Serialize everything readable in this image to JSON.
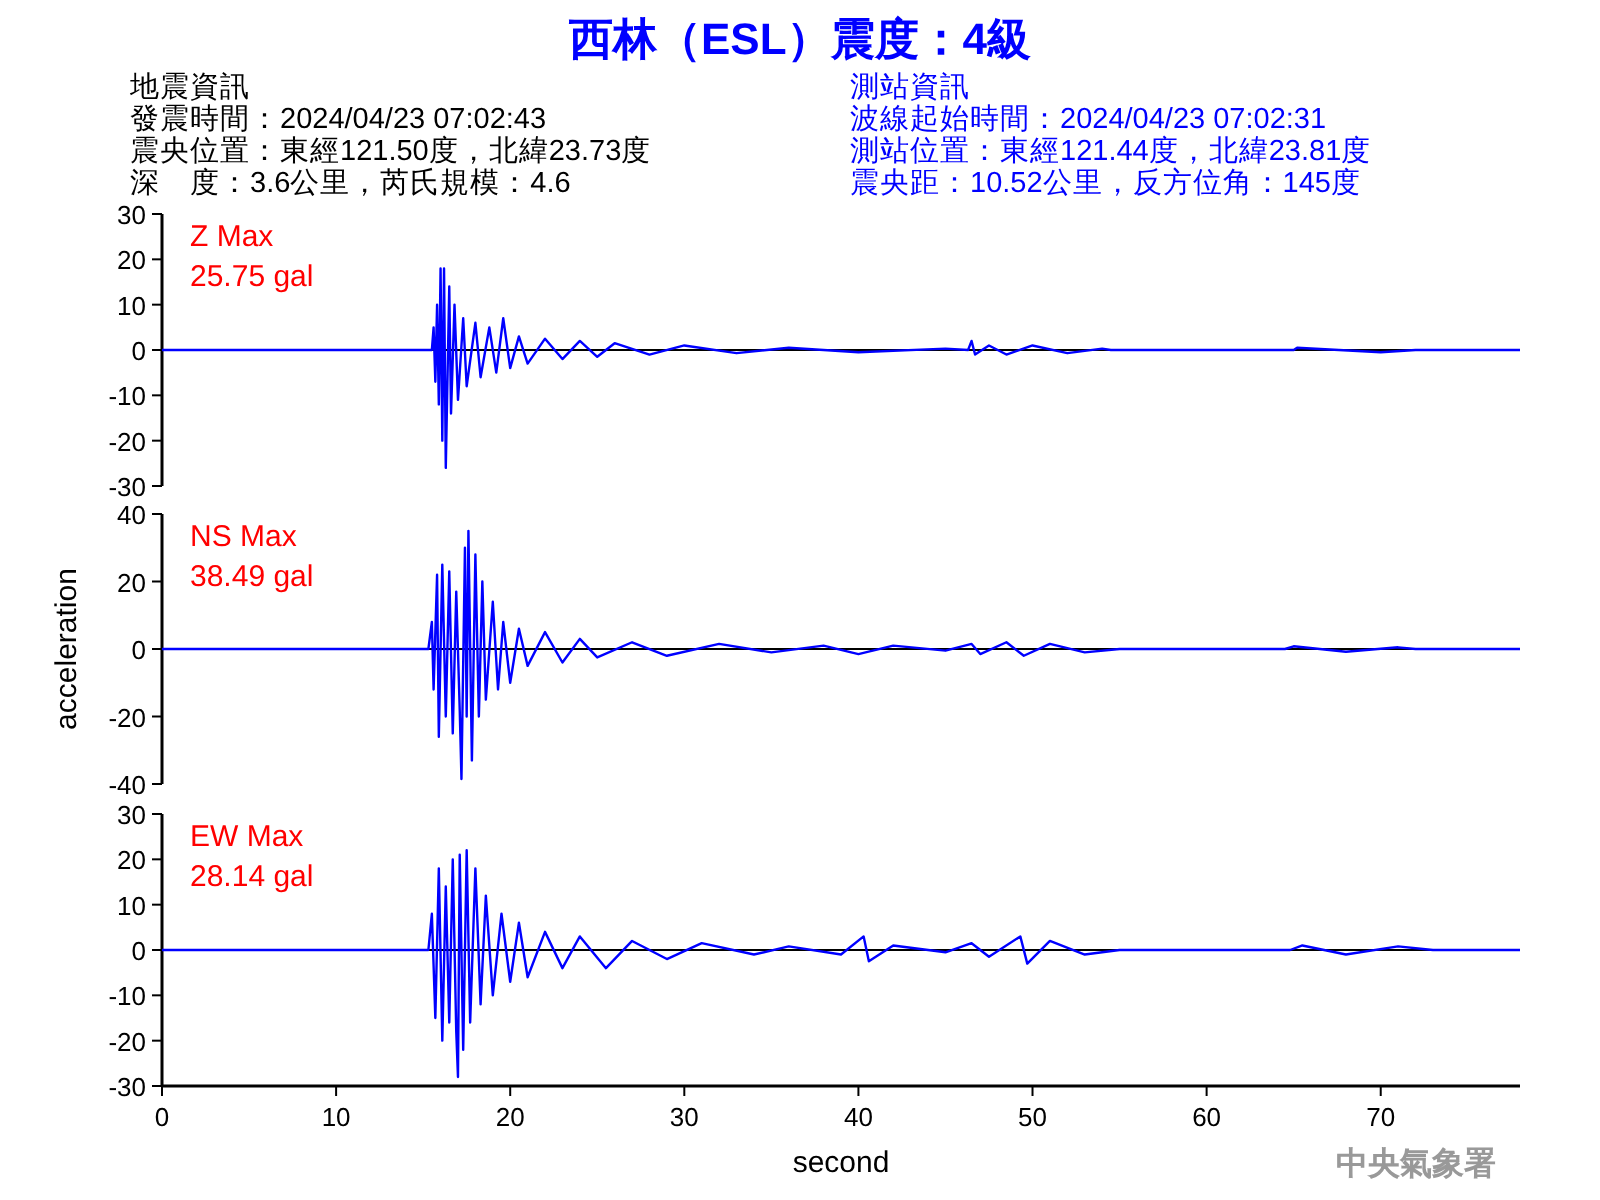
{
  "chart_data": [
    {
      "type": "other",
      "title": "西林（ESL）震度：4級",
      "annotations": [
        "地震資訊",
        "發震時間：2024/04/23 07:02:43",
        "震央位置：東經121.50度，北緯23.73度",
        "深　度：3.6公里，芮氏規模：4.6",
        "測站資訊",
        "波線起始時間：2024/04/23 07:02:31",
        "測站位置：東經121.44度，北緯23.81度",
        "震央距：10.52公里，反方位角：145度"
      ]
    },
    {
      "type": "line",
      "annotations": [
        "Z Max",
        "25.75 gal"
      ],
      "xlim": [
        0,
        78
      ],
      "ylim": [
        -30,
        30
      ],
      "yticks": [
        -30,
        -20,
        -10,
        0,
        10,
        20,
        30
      ],
      "tick_labels": "y",
      "ref_lines": [
        {
          "axis": "y",
          "value": 0,
          "color": "#000000"
        }
      ],
      "series": [
        {
          "color": "#0000ff",
          "x": [
            0,
            12,
            15.5,
            15.6,
            15.7,
            15.8,
            15.9,
            16.0,
            16.1,
            16.2,
            16.3,
            16.5,
            16.6,
            16.8,
            17.0,
            17.3,
            17.5,
            18,
            18.3,
            18.8,
            19.2,
            19.6,
            20,
            20.5,
            21,
            22,
            23,
            24,
            25,
            26,
            28,
            30,
            33,
            36,
            40,
            45,
            46.3,
            46.5,
            46.7,
            47.5,
            48.5,
            50,
            52,
            54,
            54.5,
            65,
            65.2,
            70,
            72,
            78
          ],
          "values": [
            0,
            0,
            0,
            5,
            -7,
            10,
            -12,
            18,
            -20,
            18,
            -26,
            14,
            -14,
            10,
            -11,
            7,
            -8,
            6,
            -6,
            5,
            -5,
            7,
            -4,
            3,
            -3,
            2.5,
            -2,
            2,
            -1.5,
            1.5,
            -1,
            1,
            -0.7,
            0.5,
            -0.5,
            0.3,
            0,
            2,
            -1,
            1,
            -1,
            1,
            -0.7,
            0.3,
            0,
            0,
            0.5,
            -0.5,
            0,
            0
          ]
        }
      ]
    },
    {
      "type": "line",
      "ylabel": "acceleration",
      "annotations": [
        "NS Max",
        "38.49 gal"
      ],
      "xlim": [
        0,
        78
      ],
      "ylim": [
        -40,
        40
      ],
      "yticks": [
        -40,
        -20,
        0,
        20,
        40
      ],
      "tick_labels": "y",
      "ref_lines": [
        {
          "axis": "y",
          "value": 0,
          "color": "#000000"
        }
      ],
      "series": [
        {
          "color": "#0000ff",
          "x": [
            0,
            15.3,
            15.5,
            15.6,
            15.8,
            15.9,
            16.1,
            16.3,
            16.5,
            16.7,
            16.9,
            17.1,
            17.2,
            17.4,
            17.5,
            17.6,
            17.8,
            18,
            18.2,
            18.4,
            18.6,
            19,
            19.3,
            19.6,
            20,
            20.5,
            21,
            22,
            23,
            24,
            25,
            27,
            29,
            32,
            35,
            38,
            40,
            42,
            45,
            46.5,
            47,
            48.5,
            49.5,
            51,
            53,
            55,
            64.5,
            65,
            68,
            71,
            72,
            78
          ],
          "values": [
            0,
            0,
            8,
            -12,
            22,
            -26,
            25,
            -20,
            23,
            -25,
            17,
            -18,
            -38.5,
            30,
            -20,
            35,
            -33,
            28,
            -20,
            20,
            -15,
            14,
            -12,
            8,
            -10,
            6,
            -5,
            5,
            -4,
            3,
            -2.5,
            2,
            -2,
            1.5,
            -1,
            1,
            -1.5,
            1,
            -0.5,
            1.5,
            -1.5,
            2,
            -2,
            1.5,
            -1,
            0,
            0,
            0.8,
            -0.8,
            0.5,
            0,
            0
          ]
        }
      ]
    },
    {
      "type": "line",
      "xlabel": "second",
      "annotations": [
        "EW Max",
        "28.14 gal",
        "中央氣象署"
      ],
      "xlim": [
        0,
        78
      ],
      "xticks": [
        0,
        10,
        20,
        30,
        40,
        50,
        60,
        70
      ],
      "ylim": [
        -30,
        30
      ],
      "yticks": [
        -30,
        -20,
        -10,
        0,
        10,
        20,
        30
      ],
      "ref_lines": [
        {
          "axis": "y",
          "value": 0,
          "color": "#000000"
        }
      ],
      "series": [
        {
          "color": "#0000ff",
          "x": [
            0,
            15.3,
            15.5,
            15.7,
            15.9,
            16.1,
            16.3,
            16.5,
            16.7,
            16.9,
            17.0,
            17.1,
            17.3,
            17.5,
            17.7,
            18,
            18.3,
            18.6,
            19,
            19.5,
            20,
            20.5,
            21,
            22,
            23,
            24,
            25.5,
            27,
            29,
            31,
            34,
            36,
            39,
            40.3,
            40.6,
            42,
            45,
            46.5,
            47.5,
            49.3,
            49.7,
            51,
            53,
            55,
            64.8,
            65.5,
            68,
            71,
            73,
            78
          ],
          "values": [
            0,
            0,
            8,
            -15,
            18,
            -20,
            14,
            -16,
            20,
            -18,
            -28,
            21,
            -22,
            22,
            -16,
            18,
            -12,
            12,
            -10,
            8,
            -7,
            6,
            -6,
            4,
            -4,
            3,
            -4,
            2,
            -2,
            1.5,
            -1,
            0.8,
            -1,
            3,
            -2.5,
            1,
            -0.5,
            1.5,
            -1.5,
            3,
            -3,
            2,
            -1,
            0,
            0,
            1,
            -1,
            0.8,
            0,
            0
          ]
        }
      ]
    }
  ]
}
